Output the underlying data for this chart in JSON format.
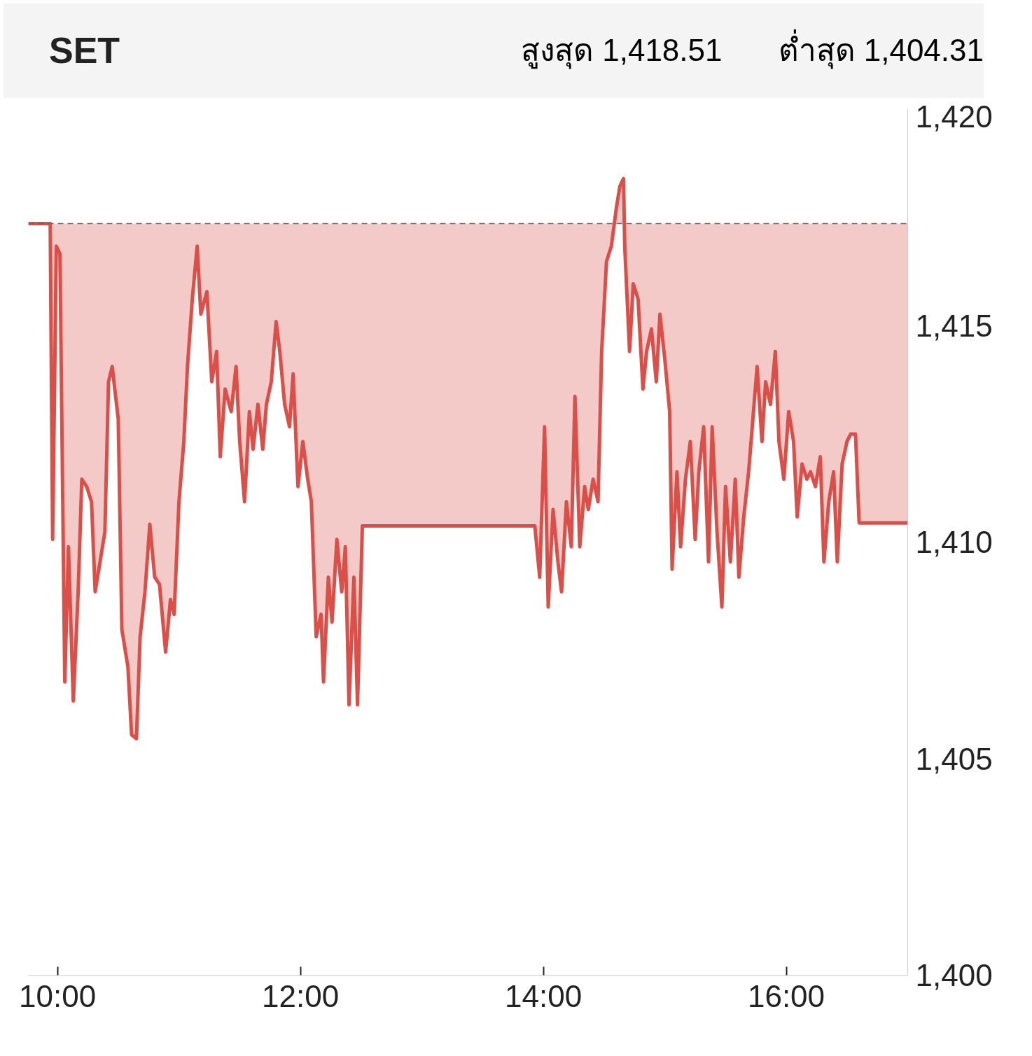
{
  "chart_data": {
    "type": "line",
    "title": "SET",
    "annotations": [
      "สูงสุด 1,418.51",
      "ต่ำสุด 1,404.31"
    ],
    "x": [
      9.76,
      9.94,
      9.96,
      9.99,
      10.02,
      10.06,
      10.09,
      10.13,
      10.17,
      10.2,
      10.24,
      10.28,
      10.31,
      10.35,
      10.39,
      10.42,
      10.45,
      10.5,
      10.53,
      10.58,
      10.61,
      10.65,
      10.68,
      10.72,
      10.76,
      10.8,
      10.84,
      10.89,
      10.93,
      10.96,
      11.0,
      11.04,
      11.07,
      11.11,
      11.15,
      11.18,
      11.23,
      11.27,
      11.31,
      11.34,
      11.38,
      11.43,
      11.47,
      11.5,
      11.54,
      11.58,
      11.61,
      11.65,
      11.69,
      11.72,
      11.76,
      11.8,
      11.83,
      11.87,
      11.91,
      11.94,
      11.98,
      12.02,
      12.06,
      12.09,
      12.13,
      12.17,
      12.19,
      12.23,
      12.26,
      12.3,
      12.34,
      12.37,
      12.4,
      12.44,
      12.47,
      12.51,
      13.93,
      13.97,
      14.01,
      14.04,
      14.08,
      14.12,
      14.15,
      14.19,
      14.23,
      14.26,
      14.3,
      14.34,
      14.37,
      14.41,
      14.45,
      14.48,
      14.52,
      14.56,
      14.6,
      14.63,
      14.66,
      14.67,
      14.71,
      14.74,
      14.78,
      14.82,
      14.85,
      14.89,
      14.93,
      14.96,
      15.0,
      15.04,
      15.06,
      15.1,
      15.13,
      15.17,
      15.21,
      15.25,
      15.28,
      15.32,
      15.36,
      15.39,
      15.43,
      15.47,
      15.5,
      15.54,
      15.58,
      15.61,
      15.65,
      15.69,
      15.72,
      15.76,
      15.8,
      15.83,
      15.87,
      15.91,
      15.94,
      15.98,
      16.02,
      16.06,
      16.09,
      16.13,
      16.17,
      16.2,
      16.24,
      16.28,
      16.31,
      16.35,
      16.39,
      16.42,
      16.46,
      16.5,
      16.53,
      16.57,
      16.6,
      17.0
    ],
    "series": [
      {
        "color": "#dc4f48",
        "values": [
          1417.35,
          1417.35,
          1410.06,
          1416.83,
          1416.65,
          1406.77,
          1409.89,
          1406.33,
          1408.85,
          1411.45,
          1411.28,
          1410.93,
          1408.85,
          1409.54,
          1410.23,
          1413.7,
          1414.05,
          1412.84,
          1407.98,
          1407.11,
          1405.55,
          1405.46,
          1407.81,
          1408.85,
          1410.41,
          1409.19,
          1409.02,
          1407.46,
          1408.67,
          1408.33,
          1410.93,
          1412.32,
          1414.05,
          1415.61,
          1416.83,
          1415.26,
          1415.78,
          1413.7,
          1414.4,
          1411.97,
          1413.53,
          1413.01,
          1414.05,
          1412.32,
          1410.93,
          1413.01,
          1412.14,
          1413.18,
          1412.14,
          1413.18,
          1413.7,
          1415.09,
          1414.4,
          1413.18,
          1412.66,
          1413.88,
          1411.28,
          1412.32,
          1411.45,
          1410.93,
          1407.81,
          1408.33,
          1406.77,
          1409.19,
          1408.15,
          1410.06,
          1408.85,
          1409.89,
          1406.24,
          1409.19,
          1406.24,
          1410.37,
          1410.37,
          1409.19,
          1412.66,
          1408.5,
          1410.75,
          1409.54,
          1408.85,
          1410.93,
          1409.89,
          1413.36,
          1409.89,
          1411.28,
          1410.75,
          1411.45,
          1410.93,
          1414.4,
          1416.48,
          1416.83,
          1417.69,
          1418.21,
          1418.39,
          1416.83,
          1414.4,
          1415.96,
          1415.61,
          1413.53,
          1414.4,
          1414.92,
          1413.7,
          1415.26,
          1414.22,
          1413.01,
          1409.37,
          1411.62,
          1409.89,
          1411.45,
          1412.32,
          1410.06,
          1411.62,
          1412.66,
          1409.54,
          1412.66,
          1410.23,
          1408.5,
          1411.28,
          1409.54,
          1411.45,
          1409.19,
          1410.58,
          1411.62,
          1412.66,
          1414.05,
          1412.32,
          1413.7,
          1413.18,
          1414.4,
          1412.32,
          1411.45,
          1413.01,
          1412.32,
          1410.58,
          1411.8,
          1411.45,
          1411.62,
          1411.28,
          1411.97,
          1409.54,
          1410.93,
          1411.62,
          1409.54,
          1411.8,
          1412.32,
          1412.49,
          1412.49,
          1410.44,
          1410.44
        ]
      }
    ],
    "ref_lines": [
      {
        "axis": "y",
        "value": 1417.35,
        "color": "#5a6a7a",
        "line_style": "dashed"
      }
    ],
    "xlim": [
      9.76,
      17.0
    ],
    "xticks": [
      {
        "value": 10,
        "label": "10:00"
      },
      {
        "value": 12,
        "label": "12:00"
      },
      {
        "value": 14,
        "label": "14:00"
      },
      {
        "value": 16,
        "label": "16:00"
      }
    ],
    "ylim": [
      1400,
      1420
    ],
    "yticks": [
      {
        "value": 1400,
        "label": "1,400"
      },
      {
        "value": 1405,
        "label": "1,405"
      },
      {
        "value": 1410,
        "label": "1,410"
      },
      {
        "value": 1415,
        "label": "1,415"
      },
      {
        "value": 1420,
        "label": "1,420"
      }
    ],
    "grid": false
  }
}
